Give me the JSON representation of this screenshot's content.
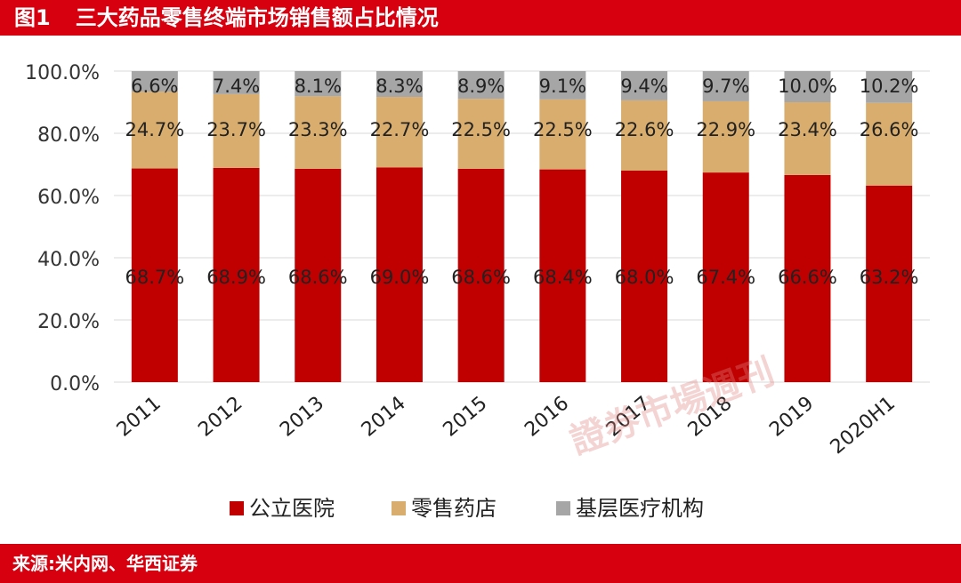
{
  "header": {
    "figure_label": "图1",
    "title": "三大药品零售终端市场销售额占比情况"
  },
  "footer": {
    "source": "来源:米内网、华西证券"
  },
  "watermark": {
    "text": "證券市場週刊"
  },
  "colors": {
    "public_hospital": "#c00000",
    "retail_pharmacy": "#d9ad6e",
    "grassroots": "#a6a6a6",
    "brand_red": "#d7000f"
  },
  "chart_data": {
    "type": "bar",
    "stacked": true,
    "categories": [
      "2011",
      "2012",
      "2013",
      "2014",
      "2015",
      "2016",
      "2017",
      "2018",
      "2019",
      "2020H1"
    ],
    "series": [
      {
        "name": "公立医院",
        "values": [
          68.7,
          68.9,
          68.6,
          69.0,
          68.6,
          68.4,
          68.0,
          67.4,
          66.6,
          63.2
        ],
        "labels": [
          "68.7%",
          "68.9%",
          "68.6%",
          "69.0%",
          "68.6%",
          "68.4%",
          "68.0%",
          "67.4%",
          "66.6%",
          "63.2%"
        ]
      },
      {
        "name": "零售药店",
        "values": [
          24.7,
          23.7,
          23.3,
          22.7,
          22.5,
          22.5,
          22.6,
          22.9,
          23.4,
          26.6
        ],
        "labels": [
          "24.7%",
          "23.7%",
          "23.3%",
          "22.7%",
          "22.5%",
          "22.5%",
          "22.6%",
          "22.9%",
          "23.4%",
          "26.6%"
        ]
      },
      {
        "name": "基层医疗机构",
        "values": [
          6.6,
          7.4,
          8.1,
          8.3,
          8.9,
          9.1,
          9.4,
          9.7,
          10.0,
          10.2
        ],
        "labels": [
          "6.6%",
          "7.4%",
          "8.1%",
          "8.3%",
          "8.9%",
          "9.1%",
          "9.4%",
          "9.7%",
          "10.0%",
          "10.2%"
        ]
      }
    ],
    "y_ticks": [
      "0.0%",
      "20.0%",
      "40.0%",
      "60.0%",
      "80.0%",
      "100.0%"
    ],
    "ylim": [
      0,
      100
    ],
    "grid": true,
    "legend_position": "bottom"
  }
}
